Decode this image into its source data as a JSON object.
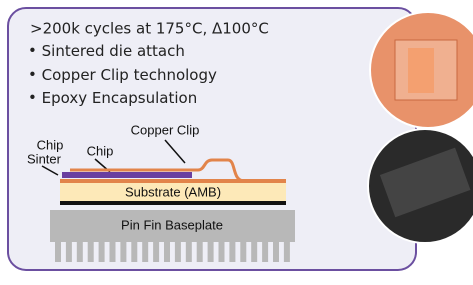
{
  "bullets": {
    "header": ">200k cycles at 175°C, Δ100°C",
    "items": [
      "Sintered die attach",
      "Copper Clip technology",
      "Epoxy Encapsulation"
    ]
  },
  "diagram": {
    "chip_sinter": [
      "Chip",
      "Sinter"
    ],
    "chip": "Chip",
    "copper_clip": "Copper Clip",
    "substrate": "Substrate (AMB)",
    "baseplate": "Pin Fin Baseplate"
  }
}
